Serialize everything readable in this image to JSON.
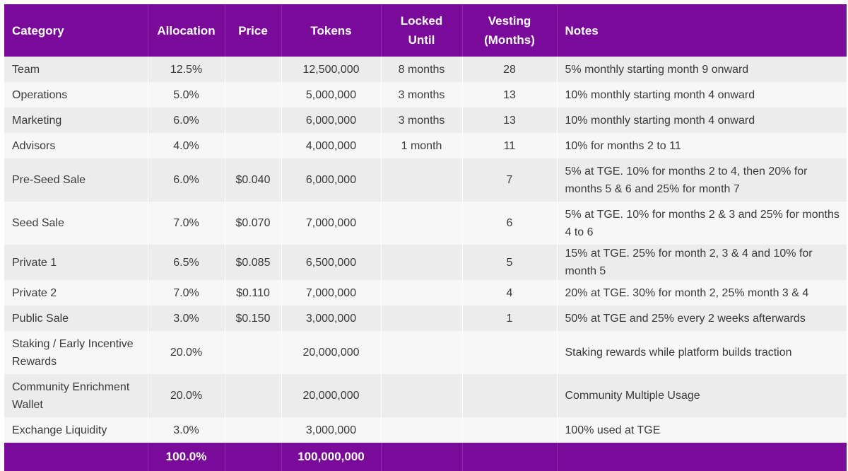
{
  "headers": {
    "category": "Category",
    "allocation": "Allocation",
    "price": "Price",
    "tokens": "Tokens",
    "locked_line1": "Locked",
    "locked_line2": "Until",
    "vesting_line1": "Vesting",
    "vesting_line2": "(Months)",
    "notes": "Notes"
  },
  "rows": [
    {
      "category": "Team",
      "allocation": "12.5%",
      "price": "",
      "tokens": "12,500,000",
      "locked": "8 months",
      "vesting": "28",
      "notes": "5% monthly starting month 9 onward"
    },
    {
      "category": "Operations",
      "allocation": "5.0%",
      "price": "",
      "tokens": "5,000,000",
      "locked": "3 months",
      "vesting": "13",
      "notes": "10% monthly starting month 4 onward"
    },
    {
      "category": "Marketing",
      "allocation": "6.0%",
      "price": "",
      "tokens": "6,000,000",
      "locked": "3 months",
      "vesting": "13",
      "notes": "10% monthly starting month 4 onward"
    },
    {
      "category": "Advisors",
      "allocation": "4.0%",
      "price": "",
      "tokens": "4,000,000",
      "locked": "1 month",
      "vesting": "11",
      "notes": "10% for months 2 to 11"
    },
    {
      "category": "Pre-Seed Sale",
      "allocation": "6.0%",
      "price": "$0.040",
      "tokens": "6,000,000",
      "locked": "",
      "vesting": "7",
      "notes": "5% at TGE. 10% for months 2 to 4, then 20% for months 5 & 6 and 25% for month 7"
    },
    {
      "category": "Seed Sale",
      "allocation": "7.0%",
      "price": "$0.070",
      "tokens": "7,000,000",
      "locked": "",
      "vesting": "6",
      "notes": "5% at TGE. 10% for months 2 & 3 and 25% for months 4 to 6"
    },
    {
      "category": "Private 1",
      "allocation": "6.5%",
      "price": "$0.085",
      "tokens": "6,500,000",
      "locked": "",
      "vesting": "5",
      "notes": "15% at TGE. 25% for month 2, 3 & 4 and 10% for month 5"
    },
    {
      "category": "Private 2",
      "allocation": "7.0%",
      "price": "$0.110",
      "tokens": "7,000,000",
      "locked": "",
      "vesting": "4",
      "notes": "20% at TGE. 30% for month 2, 25% month 3 & 4"
    },
    {
      "category": "Public Sale",
      "allocation": "3.0%",
      "price": "$0.150",
      "tokens": "3,000,000",
      "locked": "",
      "vesting": "1",
      "notes": "50% at TGE and 25% every 2 weeks afterwards"
    },
    {
      "category": "Staking / Early Incentive Rewards",
      "allocation": "20.0%",
      "price": "",
      "tokens": "20,000,000",
      "locked": "",
      "vesting": "",
      "notes": "Staking rewards while platform builds traction"
    },
    {
      "category": "Community Enrichment Wallet",
      "allocation": "20.0%",
      "price": "",
      "tokens": "20,000,000",
      "locked": "",
      "vesting": "",
      "notes": "Community Multiple Usage"
    },
    {
      "category": "Exchange Liquidity",
      "allocation": "3.0%",
      "price": "",
      "tokens": "3,000,000",
      "locked": "",
      "vesting": "",
      "notes": "100% used at TGE"
    }
  ],
  "totals": {
    "category": "",
    "allocation": "100.0%",
    "price": "",
    "tokens": "100,000,000",
    "locked": "",
    "vesting": "",
    "notes": ""
  },
  "colors": {
    "header_bg": "#7a0b9a",
    "header_text": "#ffffff",
    "row_odd": "#ececec",
    "row_even": "#f7f7f7"
  }
}
